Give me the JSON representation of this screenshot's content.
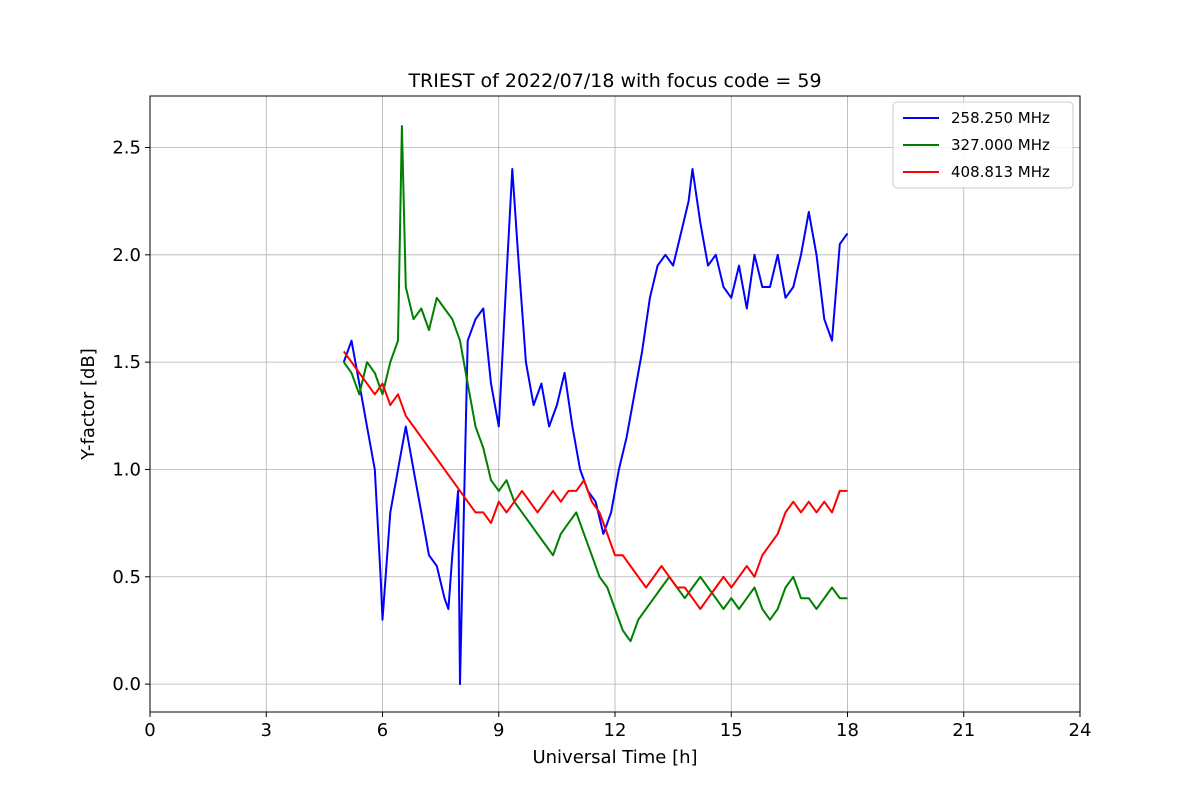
{
  "chart_data": {
    "type": "line",
    "title": "TRIEST of 2022/07/18 with focus code = 59",
    "xlabel": "Universal Time [h]",
    "ylabel": "Y-factor [dB]",
    "xlim": [
      0,
      24
    ],
    "ylim": [
      -0.13,
      2.74
    ],
    "xticks": [
      0,
      3,
      6,
      9,
      12,
      15,
      18,
      21,
      24
    ],
    "yticks": [
      0.0,
      0.5,
      1.0,
      1.5,
      2.0,
      2.5
    ],
    "ytick_labels": [
      "0.0",
      "0.5",
      "1.0",
      "1.5",
      "2.0",
      "2.5"
    ],
    "grid": true,
    "legend_position": "top-right",
    "series": [
      {
        "name": "258.250 MHz",
        "color": "#0000ff",
        "x": [
          5.0,
          5.2,
          5.4,
          5.6,
          5.8,
          5.95,
          6.0,
          6.2,
          6.4,
          6.6,
          6.8,
          7.0,
          7.2,
          7.4,
          7.6,
          7.7,
          7.8,
          7.95,
          8.0,
          8.2,
          8.4,
          8.6,
          8.8,
          9.0,
          9.2,
          9.35,
          9.5,
          9.7,
          9.9,
          10.1,
          10.3,
          10.5,
          10.7,
          10.9,
          11.1,
          11.3,
          11.5,
          11.7,
          11.9,
          12.1,
          12.3,
          12.5,
          12.7,
          12.9,
          13.1,
          13.3,
          13.5,
          13.7,
          13.9,
          14.0,
          14.2,
          14.4,
          14.6,
          14.8,
          15.0,
          15.2,
          15.4,
          15.6,
          15.8,
          16.0,
          16.2,
          16.4,
          16.6,
          16.8,
          17.0,
          17.2,
          17.4,
          17.6,
          17.8,
          18.0
        ],
        "values": [
          1.5,
          1.6,
          1.4,
          1.2,
          1.0,
          0.5,
          0.3,
          0.8,
          1.0,
          1.2,
          1.0,
          0.8,
          0.6,
          0.55,
          0.4,
          0.35,
          0.6,
          0.9,
          0.0,
          1.6,
          1.7,
          1.75,
          1.4,
          1.2,
          1.9,
          2.4,
          2.0,
          1.5,
          1.3,
          1.4,
          1.2,
          1.3,
          1.45,
          1.2,
          1.0,
          0.9,
          0.85,
          0.7,
          0.8,
          1.0,
          1.15,
          1.35,
          1.55,
          1.8,
          1.95,
          2.0,
          1.95,
          2.1,
          2.25,
          2.4,
          2.15,
          1.95,
          2.0,
          1.85,
          1.8,
          1.95,
          1.75,
          2.0,
          1.85,
          1.85,
          2.0,
          1.8,
          1.85,
          2.0,
          2.2,
          2.0,
          1.7,
          1.6,
          2.05,
          2.1
        ]
      },
      {
        "name": "327.000 MHz",
        "color": "#008000",
        "x": [
          5.0,
          5.2,
          5.4,
          5.6,
          5.8,
          6.0,
          6.2,
          6.4,
          6.5,
          6.6,
          6.8,
          7.0,
          7.2,
          7.4,
          7.6,
          7.8,
          8.0,
          8.2,
          8.4,
          8.6,
          8.8,
          9.0,
          9.2,
          9.4,
          9.6,
          9.8,
          10.0,
          10.2,
          10.4,
          10.6,
          10.8,
          11.0,
          11.2,
          11.4,
          11.6,
          11.8,
          12.0,
          12.2,
          12.4,
          12.6,
          12.8,
          13.0,
          13.2,
          13.4,
          13.6,
          13.8,
          14.0,
          14.2,
          14.4,
          14.6,
          14.8,
          15.0,
          15.2,
          15.4,
          15.6,
          15.8,
          16.0,
          16.2,
          16.4,
          16.6,
          16.8,
          17.0,
          17.2,
          17.4,
          17.6,
          17.8,
          18.0
        ],
        "values": [
          1.5,
          1.45,
          1.35,
          1.5,
          1.45,
          1.35,
          1.5,
          1.6,
          2.6,
          1.85,
          1.7,
          1.75,
          1.65,
          1.8,
          1.75,
          1.7,
          1.6,
          1.4,
          1.2,
          1.1,
          0.95,
          0.9,
          0.95,
          0.85,
          0.8,
          0.75,
          0.7,
          0.65,
          0.6,
          0.7,
          0.75,
          0.8,
          0.7,
          0.6,
          0.5,
          0.45,
          0.35,
          0.25,
          0.2,
          0.3,
          0.35,
          0.4,
          0.45,
          0.5,
          0.45,
          0.4,
          0.45,
          0.5,
          0.45,
          0.4,
          0.35,
          0.4,
          0.35,
          0.4,
          0.45,
          0.35,
          0.3,
          0.35,
          0.45,
          0.5,
          0.4,
          0.4,
          0.35,
          0.4,
          0.45,
          0.4,
          0.4
        ]
      },
      {
        "name": "408.813 MHz",
        "color": "#ff0000",
        "x": [
          5.0,
          5.2,
          5.4,
          5.6,
          5.8,
          6.0,
          6.2,
          6.4,
          6.6,
          6.8,
          7.0,
          7.2,
          7.4,
          7.6,
          7.8,
          8.0,
          8.2,
          8.4,
          8.6,
          8.8,
          9.0,
          9.2,
          9.4,
          9.6,
          9.8,
          10.0,
          10.2,
          10.4,
          10.6,
          10.8,
          11.0,
          11.2,
          11.4,
          11.6,
          11.8,
          12.0,
          12.2,
          12.4,
          12.6,
          12.8,
          13.0,
          13.2,
          13.4,
          13.6,
          13.8,
          14.0,
          14.2,
          14.4,
          14.6,
          14.8,
          15.0,
          15.2,
          15.4,
          15.6,
          15.8,
          16.0,
          16.2,
          16.4,
          16.6,
          16.8,
          17.0,
          17.2,
          17.4,
          17.6,
          17.8,
          18.0
        ],
        "values": [
          1.55,
          1.5,
          1.45,
          1.4,
          1.35,
          1.4,
          1.3,
          1.35,
          1.25,
          1.2,
          1.15,
          1.1,
          1.05,
          1.0,
          0.95,
          0.9,
          0.85,
          0.8,
          0.8,
          0.75,
          0.85,
          0.8,
          0.85,
          0.9,
          0.85,
          0.8,
          0.85,
          0.9,
          0.85,
          0.9,
          0.9,
          0.95,
          0.85,
          0.8,
          0.7,
          0.6,
          0.6,
          0.55,
          0.5,
          0.45,
          0.5,
          0.55,
          0.5,
          0.45,
          0.45,
          0.4,
          0.35,
          0.4,
          0.45,
          0.5,
          0.45,
          0.5,
          0.55,
          0.5,
          0.6,
          0.65,
          0.7,
          0.8,
          0.85,
          0.8,
          0.85,
          0.8,
          0.85,
          0.8,
          0.9,
          0.9
        ]
      }
    ]
  }
}
